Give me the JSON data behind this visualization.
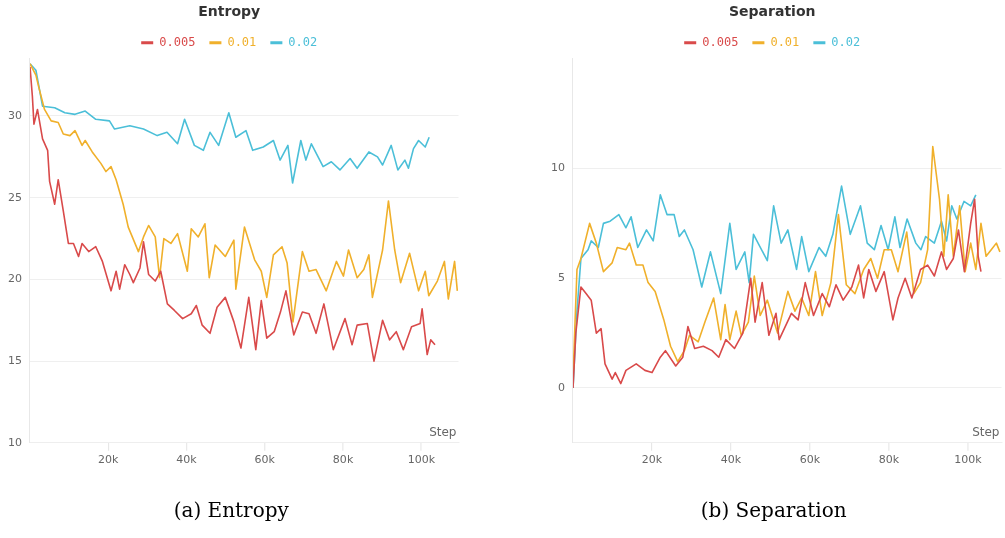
{
  "chart_data": [
    {
      "type": "line",
      "title": "Entropy",
      "xlabel": "Step",
      "annotations": [
        "(a) Entropy"
      ],
      "legend": "top",
      "grid": "y",
      "line_style": "solid",
      "xlim": [
        0,
        109500
      ],
      "xticks": [
        {
          "value": 20000,
          "label": "20k"
        },
        {
          "value": 40000,
          "label": "40k"
        },
        {
          "value": 60000,
          "label": "60k"
        },
        {
          "value": 80000,
          "label": "80k"
        },
        {
          "value": 100000,
          "label": "100k"
        }
      ],
      "ylim": [
        10,
        33.5
      ],
      "yticks": [
        10,
        15,
        20,
        25,
        30
      ],
      "series": [
        {
          "name": "0.005",
          "color": "#d94a4a",
          "x": [
            0,
            600,
            1000,
            1900,
            3200,
            4500,
            5000,
            6300,
            7200,
            8500,
            9800,
            11100,
            12400,
            13300,
            15000,
            16800,
            18500,
            20700,
            22000,
            22900,
            24200,
            25500,
            26400,
            28100,
            29000,
            30300,
            32000,
            33400,
            35100,
            36900,
            39000,
            41200,
            42500,
            44000,
            46000,
            47800,
            49900,
            52100,
            53900,
            55900,
            57700,
            59100,
            60500,
            62400,
            64000,
            65400,
            67400,
            69600,
            71300,
            73100,
            75100,
            77500,
            80500,
            82300,
            83600,
            86200,
            87900,
            90100,
            91900,
            93600,
            95400,
            97500,
            99700,
            100200,
            101500,
            102400,
            103500
          ],
          "values": [
            33.0,
            31.2,
            29.5,
            30.4,
            28.6,
            27.9,
            26.0,
            24.6,
            26.1,
            24.2,
            22.2,
            22.2,
            21.4,
            22.2,
            21.7,
            22.0,
            21.1,
            19.3,
            20.5,
            19.4,
            20.9,
            20.3,
            19.8,
            20.7,
            22.3,
            20.3,
            19.9,
            20.5,
            18.5,
            18.1,
            17.6,
            17.9,
            18.4,
            17.2,
            16.7,
            18.3,
            18.9,
            17.4,
            15.8,
            18.9,
            15.7,
            18.7,
            16.4,
            16.8,
            18.0,
            19.3,
            16.6,
            18.0,
            17.9,
            16.7,
            18.5,
            15.7,
            17.6,
            16.0,
            17.2,
            17.3,
            15.0,
            17.5,
            16.3,
            16.8,
            15.7,
            17.1,
            17.3,
            18.2,
            15.4,
            16.3,
            16.0
          ]
        },
        {
          "name": "0.01",
          "color": "#f0b02b",
          "x": [
            0,
            1500,
            2200,
            3700,
            5400,
            7200,
            8500,
            10200,
            11500,
            13300,
            14100,
            15900,
            18100,
            19400,
            20700,
            22000,
            23800,
            25100,
            27700,
            29000,
            30300,
            32000,
            33100,
            34200,
            36000,
            37700,
            40200,
            41200,
            43000,
            44700,
            45800,
            47300,
            49900,
            52100,
            52600,
            54800,
            57400,
            59100,
            60500,
            62200,
            64400,
            65700,
            67200,
            69600,
            71300,
            73100,
            75700,
            78300,
            80100,
            81400,
            83600,
            85300,
            86600,
            87500,
            90100,
            91600,
            93200,
            94700,
            97000,
            99300,
            101000,
            101900,
            104100,
            105900,
            106900,
            108500,
            109200
          ],
          "values": [
            33.2,
            32.5,
            31.8,
            30.4,
            29.7,
            29.6,
            28.9,
            28.8,
            29.1,
            28.2,
            28.5,
            27.8,
            27.1,
            26.6,
            26.9,
            26.1,
            24.6,
            23.2,
            21.7,
            22.6,
            23.3,
            22.6,
            20.1,
            22.5,
            22.2,
            22.8,
            20.5,
            23.1,
            22.6,
            23.4,
            20.1,
            22.1,
            21.4,
            22.4,
            19.4,
            23.2,
            21.2,
            20.5,
            18.9,
            21.5,
            22.0,
            21.0,
            17.4,
            21.7,
            20.5,
            20.6,
            19.3,
            21.1,
            20.2,
            21.8,
            20.1,
            20.6,
            21.5,
            18.9,
            21.8,
            24.8,
            21.8,
            19.8,
            21.6,
            19.3,
            20.5,
            19.0,
            19.9,
            21.1,
            18.8,
            21.1,
            19.3
          ]
        },
        {
          "name": "0.02",
          "color": "#4bbfd8",
          "x": [
            0,
            1500,
            3200,
            6300,
            8900,
            11500,
            14100,
            16800,
            20300,
            21600,
            25500,
            29000,
            32500,
            35000,
            37700,
            39500,
            42000,
            44300,
            46000,
            48200,
            50800,
            52600,
            55200,
            56900,
            59600,
            62200,
            63900,
            65900,
            67100,
            69200,
            70500,
            71900,
            74900,
            77000,
            79200,
            81800,
            83600,
            86600,
            88800,
            90100,
            92300,
            94000,
            95800,
            96700,
            98000,
            99300,
            101000,
            102000
          ],
          "values": [
            33.2,
            32.8,
            30.6,
            30.5,
            30.2,
            30.1,
            30.3,
            29.8,
            29.7,
            29.2,
            29.4,
            29.2,
            28.8,
            29.0,
            28.3,
            29.8,
            28.2,
            27.9,
            29.0,
            28.2,
            30.2,
            28.7,
            29.1,
            27.9,
            28.1,
            28.5,
            27.3,
            28.2,
            25.9,
            28.5,
            27.3,
            28.3,
            26.9,
            27.2,
            26.7,
            27.4,
            26.8,
            27.8,
            27.5,
            27.0,
            28.2,
            26.7,
            27.3,
            26.8,
            28.0,
            28.5,
            28.1,
            28.7
          ]
        }
      ]
    },
    {
      "type": "line",
      "title": "Separation",
      "xlabel": "Step",
      "annotations": [
        "(b) Separation"
      ],
      "legend": "top",
      "grid": "y",
      "line_style": "solid",
      "xlim": [
        0,
        108500
      ],
      "xticks": [
        {
          "value": 20000,
          "label": "20k"
        },
        {
          "value": 40000,
          "label": "40k"
        },
        {
          "value": 60000,
          "label": "60k"
        },
        {
          "value": 80000,
          "label": "80k"
        },
        {
          "value": 100000,
          "label": "100k"
        }
      ],
      "ylim": [
        -2.5,
        15
      ],
      "yticks": [
        0,
        5,
        10
      ],
      "series": [
        {
          "name": "0.005",
          "color": "#d94a4a",
          "x": [
            0,
            700,
            2000,
            3300,
            4600,
            5900,
            7100,
            8100,
            9900,
            10700,
            12100,
            13400,
            16000,
            18200,
            20000,
            22100,
            23400,
            26000,
            27800,
            29100,
            30800,
            33000,
            35200,
            36900,
            38700,
            40900,
            43000,
            45000,
            46100,
            47900,
            49600,
            51400,
            52200,
            55300,
            57000,
            58800,
            60900,
            63100,
            64900,
            66600,
            68400,
            70600,
            72300,
            73600,
            74900,
            76700,
            78800,
            81000,
            82300,
            84100,
            85800,
            88000,
            89800,
            91500,
            93300,
            94600,
            96300,
            97600,
            99100,
            100700,
            101700,
            102600,
            103300
          ],
          "values": [
            0,
            2.5,
            4.6,
            4.3,
            4.0,
            2.5,
            2.7,
            1.1,
            0.4,
            0.7,
            0.2,
            0.8,
            1.1,
            0.8,
            0.7,
            1.4,
            1.7,
            1.0,
            1.4,
            2.8,
            1.8,
            1.9,
            1.7,
            1.4,
            2.2,
            1.8,
            2.5,
            5.0,
            3.0,
            4.8,
            2.4,
            3.4,
            2.2,
            3.4,
            3.1,
            4.8,
            3.3,
            4.3,
            3.7,
            4.7,
            4.0,
            4.6,
            5.6,
            4.1,
            5.4,
            4.4,
            5.3,
            3.1,
            4.1,
            5.0,
            4.1,
            5.4,
            5.6,
            5.1,
            6.2,
            5.4,
            5.9,
            7.2,
            5.3,
            7.5,
            8.6,
            6.0,
            5.3
          ]
        },
        {
          "name": "0.01",
          "color": "#f0b02b",
          "x": [
            0,
            1000,
            2000,
            4200,
            5900,
            7700,
            9900,
            11200,
            13400,
            14300,
            16000,
            17700,
            19000,
            20800,
            23000,
            24700,
            26500,
            28200,
            29500,
            31700,
            33400,
            35600,
            37400,
            38500,
            39700,
            41300,
            42600,
            44400,
            45900,
            47400,
            49200,
            51800,
            54400,
            56200,
            57900,
            59700,
            61400,
            63100,
            65300,
            67200,
            69200,
            71400,
            73600,
            75400,
            77100,
            78800,
            80600,
            82300,
            84500,
            86300,
            88000,
            89800,
            91100,
            92800,
            93900,
            95000,
            96300,
            97900,
            99300,
            100700,
            102000,
            103300,
            104600,
            105900,
            107200,
            108100
          ],
          "values": [
            0.5,
            5.4,
            5.9,
            7.5,
            6.6,
            5.3,
            5.7,
            6.4,
            6.3,
            6.6,
            5.6,
            5.6,
            4.8,
            4.4,
            3.1,
            1.9,
            1.2,
            1.7,
            2.4,
            2.1,
            3.0,
            4.1,
            2.2,
            3.8,
            2.2,
            3.5,
            2.4,
            3.0,
            5.1,
            3.3,
            4.0,
            2.5,
            4.4,
            3.5,
            4.1,
            3.3,
            5.3,
            3.3,
            4.8,
            7.9,
            4.7,
            4.3,
            5.4,
            5.9,
            5.0,
            6.3,
            6.3,
            5.3,
            7.1,
            4.3,
            4.8,
            6.3,
            11.0,
            8.6,
            6.0,
            8.8,
            6.0,
            8.3,
            5.3,
            6.6,
            5.4,
            7.5,
            6.0,
            6.3,
            6.6,
            6.2
          ]
        },
        {
          "name": "0.02",
          "color": "#4bbfd8",
          "x": [
            0,
            1000,
            2000,
            3800,
            4600,
            6400,
            7700,
            9400,
            11600,
            13400,
            14700,
            16400,
            18600,
            20300,
            22100,
            23800,
            25600,
            26900,
            28200,
            30400,
            32600,
            34800,
            37400,
            39700,
            41300,
            43500,
            44600,
            45700,
            49200,
            50800,
            52700,
            54400,
            56600,
            57900,
            59700,
            62300,
            64000,
            65800,
            68000,
            70200,
            72800,
            74500,
            76300,
            78000,
            79800,
            81500,
            82800,
            84600,
            86800,
            88100,
            89300,
            91500,
            93300,
            94600,
            95900,
            97200,
            99000,
            100700,
            102000
          ],
          "values": [
            0,
            3.5,
            5.9,
            6.3,
            6.7,
            6.4,
            7.5,
            7.6,
            7.9,
            7.3,
            7.8,
            6.4,
            7.2,
            6.7,
            8.8,
            7.9,
            7.9,
            6.9,
            7.2,
            6.3,
            4.6,
            6.2,
            4.3,
            7.5,
            5.4,
            6.2,
            4.8,
            7.0,
            5.8,
            8.3,
            6.6,
            7.2,
            5.4,
            6.9,
            5.3,
            6.4,
            6.0,
            7.0,
            9.2,
            7.0,
            8.3,
            6.6,
            6.3,
            7.4,
            6.3,
            7.8,
            6.4,
            7.7,
            6.6,
            6.3,
            6.9,
            6.6,
            7.6,
            6.7,
            8.3,
            7.7,
            8.5,
            8.3,
            8.8
          ]
        }
      ]
    }
  ]
}
